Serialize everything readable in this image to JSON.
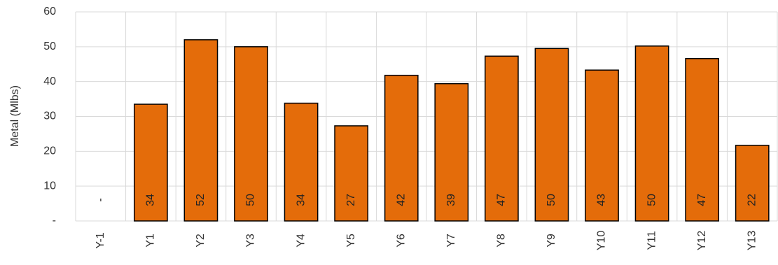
{
  "chart_data": {
    "type": "bar",
    "y_label": "Metal (Mlbs)",
    "categories": [
      "Y-1",
      "Y1",
      "Y2",
      "Y3",
      "Y4",
      "Y5",
      "Y6",
      "Y7",
      "Y8",
      "Y9",
      "Y10",
      "Y11",
      "Y12",
      "Y13"
    ],
    "values": [
      0,
      33.5,
      52,
      50,
      33.8,
      27.3,
      41.8,
      39.4,
      47.3,
      49.5,
      43.3,
      50.2,
      46.6,
      21.7
    ],
    "value_labels": [
      "-",
      "34",
      "52",
      "50",
      "34",
      "27",
      "42",
      "39",
      "47",
      "50",
      "43",
      "50",
      "47",
      "22"
    ],
    "color": "#e46c0a",
    "ylim": [
      0,
      60
    ],
    "yticks": [
      {
        "value": 0,
        "label": "-"
      },
      10,
      20,
      30,
      40,
      50,
      60
    ],
    "grid": true
  }
}
